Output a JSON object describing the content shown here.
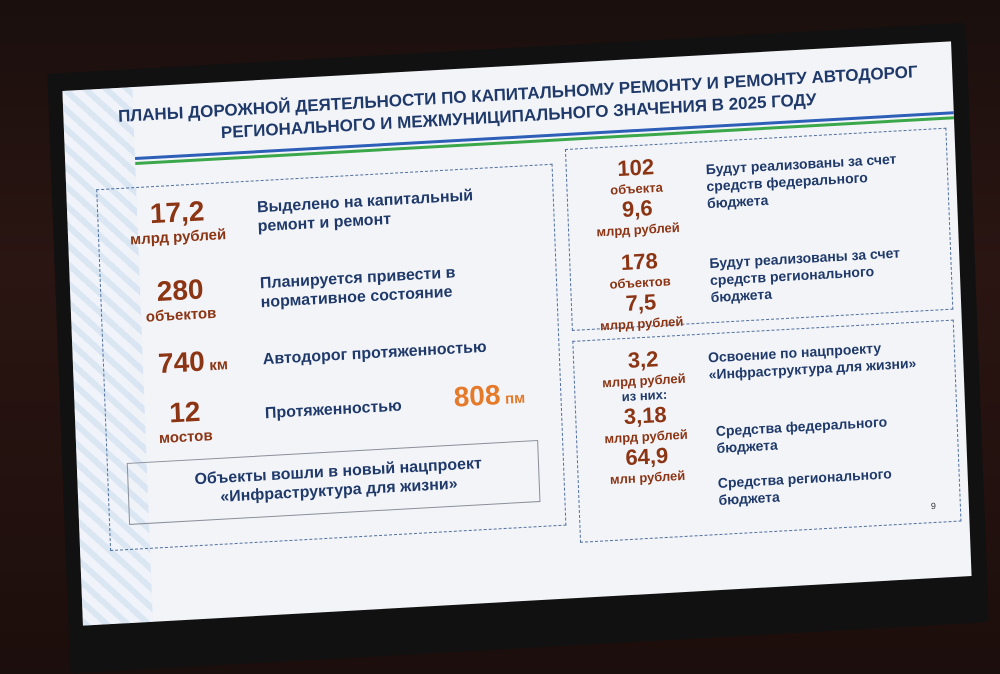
{
  "slide": {
    "title": "ПЛАНЫ ДОРОЖНОЙ ДЕЯТЕЛЬНОСТИ ПО КАПИТАЛЬНОМУ РЕМОНТУ И РЕМОНТУ АВТОДОРОГ РЕГИОНАЛЬНОГО И МЕЖМУНИЦИПАЛЬНОГО ЗНАЧЕНИЯ В 2025 ГОДУ",
    "left": {
      "items": [
        {
          "value": "17,2",
          "unit": "млрд рублей",
          "text": "Выделено на капитальный ремонт и ремонт"
        },
        {
          "value": "280",
          "unit": "объектов",
          "text": "Планируется привести в нормативное состояние"
        },
        {
          "value": "740",
          "unit": "км",
          "text": "Автодорог протяженностью"
        },
        {
          "value": "12",
          "unit": "мостов",
          "text": "Протяженностью",
          "extra_value": "808",
          "extra_unit": "пм"
        }
      ],
      "note": "Объекты вошли в новый нацпроект «Инфраструктура для жизни»"
    },
    "right_top": [
      {
        "count": "102",
        "count_unit": "объекта",
        "value": "9,6",
        "unit": "млрд рублей",
        "text": "Будут реализованы за счет средств федерального бюджета"
      },
      {
        "count": "178",
        "count_unit": "объектов",
        "value": "7,5",
        "unit": "млрд рублей",
        "text": "Будут реализованы за счет средств регионального бюджета"
      }
    ],
    "right_bottom": {
      "total": "3,2",
      "total_unit": "млрд рублей",
      "of_them": "из них:",
      "total_text": "Освоение по нацпроекту «Инфраструктура для жизни»",
      "items": [
        {
          "value": "3,18",
          "unit": "млрд рублей",
          "text": "Средства федерального бюджета"
        },
        {
          "value": "64,9",
          "unit": "млн рублей",
          "text": "Средства регионального бюджета"
        }
      ]
    },
    "page_number": "9"
  },
  "colors": {
    "title": "#1f3a6a",
    "value": "#8c3514",
    "accent": "#e67a2b",
    "line_blue": "#2d5fb8",
    "line_green": "#3aa84a"
  }
}
